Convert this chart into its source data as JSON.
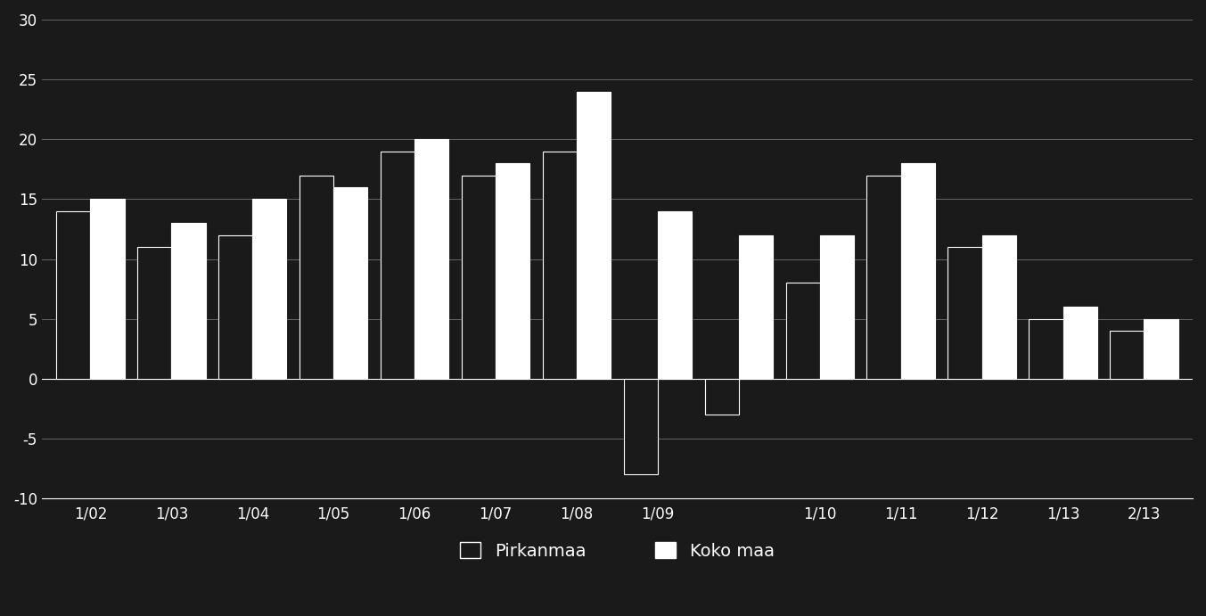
{
  "categories": [
    "1/02",
    "1/03",
    "1/04",
    "1/05",
    "1/06",
    "1/07",
    "1/08",
    "1/09",
    "",
    "1/10",
    "1/11",
    "1/12",
    "1/13",
    "2/13"
  ],
  "pirkanmaa": [
    14,
    11,
    12,
    17,
    19,
    17,
    19,
    -8,
    -3,
    8,
    17,
    11,
    5,
    4
  ],
  "koko_maa": [
    15,
    13,
    15,
    16,
    20,
    18,
    24,
    14,
    12,
    12,
    18,
    12,
    6,
    5
  ],
  "pirkanmaa_color": "#1a1a1a",
  "koko_maa_color": "#ffffff",
  "background_color": "#1a1a1a",
  "plot_bg_color": "#1a1a1a",
  "text_color": "#ffffff",
  "grid_color": "#666666",
  "ylim": [
    -10,
    30
  ],
  "yticks": [
    -10,
    -5,
    0,
    5,
    10,
    15,
    20,
    25,
    30
  ],
  "legend_pirkanmaa": "Pirkanmaa",
  "legend_koko_maa": "Koko maa",
  "bar_width": 0.42
}
